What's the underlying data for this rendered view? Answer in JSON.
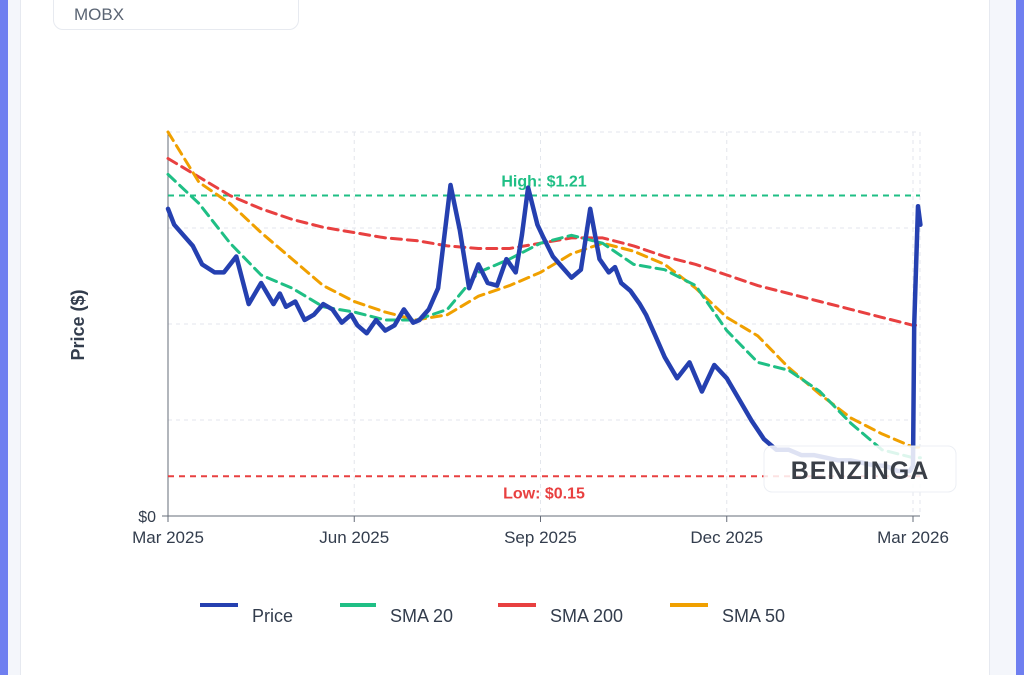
{
  "ticker": {
    "symbol": "MOBX"
  },
  "brand": {
    "logo_text": "BENZINGA"
  },
  "colors": {
    "price": "#2540b0",
    "sma20": "#1fbf85",
    "sma200": "#e84040",
    "sma50": "#f0a000",
    "high_line": "#1fbf85",
    "low_line": "#e84040",
    "axis_text": "#333d4d",
    "grid": "#e3e6ec"
  },
  "chart_data": {
    "type": "line",
    "title": "",
    "xlabel": "",
    "ylabel": "Price ($)",
    "ylim": [
      0,
      1.45
    ],
    "x_ticks": [
      "Mar 2025",
      "Jun 2025",
      "Sep 2025",
      "Dec 2025",
      "Mar 2026"
    ],
    "y_ticks": [
      "$0"
    ],
    "annotations": {
      "high": {
        "label": "High: $1.21",
        "value": 1.21
      },
      "low": {
        "label": "Low: $0.15",
        "value": 0.15
      }
    },
    "legend": {
      "placement": "bottom",
      "entries": [
        "Price",
        "SMA 20",
        "SMA 200",
        "SMA 50"
      ]
    },
    "series": [
      {
        "name": "Price",
        "x_months": [
          0,
          0.1,
          0.25,
          0.4,
          0.55,
          0.75,
          0.9,
          1.1,
          1.3,
          1.5,
          1.7,
          1.8,
          1.9,
          2.05,
          2.2,
          2.35,
          2.5,
          2.65,
          2.8,
          2.95,
          3.05,
          3.2,
          3.35,
          3.5,
          3.65,
          3.8,
          3.95,
          4.05,
          4.2,
          4.35,
          4.55,
          4.7,
          4.85,
          5.0,
          5.15,
          5.3,
          5.45,
          5.6,
          5.7,
          5.8,
          5.95,
          6.05,
          6.2,
          6.35,
          6.5,
          6.65,
          6.8,
          6.95,
          7.1,
          7.2,
          7.3,
          7.45,
          7.6,
          7.7,
          7.85,
          8.0,
          8.2,
          8.4,
          8.6,
          8.8,
          9.0,
          9.2,
          9.4,
          9.6,
          9.8,
          10.0,
          10.2,
          10.4,
          10.6,
          10.8,
          11.0,
          11.2,
          11.4,
          11.55,
          11.65,
          11.75,
          11.85,
          11.95,
          12.0,
          12.02,
          12.08,
          12.12
        ],
        "values": [
          1.16,
          1.1,
          1.06,
          1.02,
          0.95,
          0.92,
          0.92,
          0.98,
          0.8,
          0.88,
          0.8,
          0.84,
          0.79,
          0.81,
          0.74,
          0.76,
          0.8,
          0.78,
          0.73,
          0.76,
          0.72,
          0.69,
          0.74,
          0.7,
          0.72,
          0.78,
          0.73,
          0.74,
          0.78,
          0.86,
          1.25,
          1.08,
          0.86,
          0.95,
          0.88,
          0.87,
          0.97,
          0.92,
          1.06,
          1.24,
          1.1,
          1.05,
          0.98,
          0.94,
          0.9,
          0.93,
          1.16,
          0.97,
          0.92,
          0.94,
          0.88,
          0.85,
          0.8,
          0.76,
          0.68,
          0.6,
          0.52,
          0.58,
          0.47,
          0.57,
          0.52,
          0.44,
          0.36,
          0.29,
          0.25,
          0.25,
          0.23,
          0.23,
          0.22,
          0.21,
          0.21,
          0.2,
          0.19,
          0.19,
          0.18,
          0.17,
          0.17,
          0.17,
          0.19,
          0.72,
          1.17,
          1.1
        ]
      },
      {
        "name": "SMA 20",
        "x_months": [
          0,
          0.5,
          1.0,
          1.5,
          2.0,
          2.5,
          3.0,
          3.5,
          4.0,
          4.5,
          5.0,
          5.5,
          6.0,
          6.5,
          7.0,
          7.5,
          8.0,
          8.5,
          9.0,
          9.5,
          10.0,
          10.5,
          11.0,
          11.5,
          12.0,
          12.12
        ],
        "values": [
          1.29,
          1.18,
          1.03,
          0.91,
          0.86,
          0.79,
          0.77,
          0.74,
          0.74,
          0.78,
          0.92,
          0.97,
          1.03,
          1.06,
          1.03,
          0.95,
          0.93,
          0.87,
          0.7,
          0.58,
          0.55,
          0.47,
          0.35,
          0.25,
          0.22,
          0.22
        ]
      },
      {
        "name": "SMA 200",
        "x_months": [
          0,
          0.5,
          1.0,
          1.5,
          2.0,
          2.5,
          3.0,
          3.5,
          4.0,
          4.5,
          5.0,
          5.5,
          6.0,
          6.5,
          7.0,
          7.5,
          8.0,
          8.5,
          9.0,
          9.5,
          10.0,
          10.5,
          11.0,
          11.5,
          12.0,
          12.12
        ],
        "values": [
          1.35,
          1.28,
          1.21,
          1.16,
          1.12,
          1.09,
          1.07,
          1.05,
          1.04,
          1.02,
          1.01,
          1.01,
          1.03,
          1.05,
          1.05,
          1.02,
          0.98,
          0.95,
          0.91,
          0.87,
          0.84,
          0.81,
          0.78,
          0.75,
          0.72,
          0.72
        ]
      },
      {
        "name": "SMA 50",
        "x_months": [
          0,
          0.5,
          1.0,
          1.5,
          2.0,
          2.5,
          3.0,
          3.5,
          4.0,
          4.5,
          5.0,
          5.5,
          6.0,
          6.5,
          7.0,
          7.5,
          8.0,
          8.5,
          9.0,
          9.5,
          10.0,
          10.5,
          11.0,
          11.5,
          12.0,
          12.12
        ],
        "values": [
          1.45,
          1.26,
          1.18,
          1.07,
          0.97,
          0.87,
          0.81,
          0.77,
          0.74,
          0.76,
          0.83,
          0.87,
          0.92,
          0.99,
          1.03,
          1.0,
          0.95,
          0.86,
          0.75,
          0.68,
          0.56,
          0.46,
          0.37,
          0.31,
          0.26,
          0.26
        ]
      }
    ]
  }
}
